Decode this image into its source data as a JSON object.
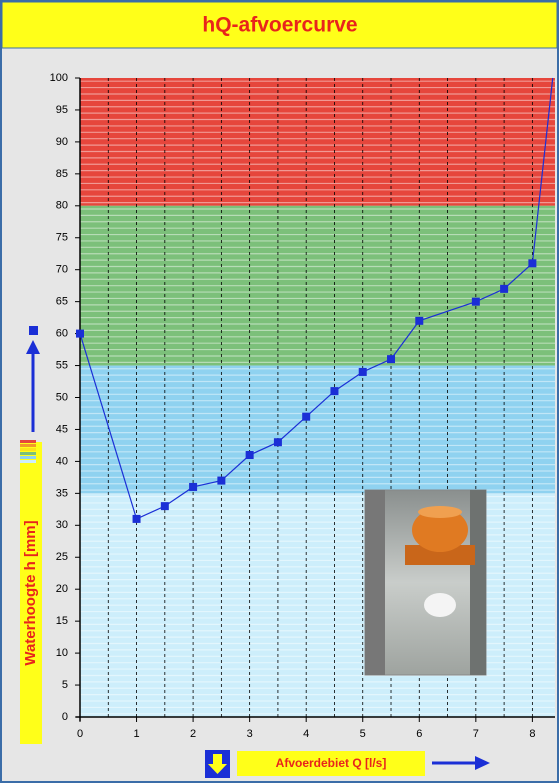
{
  "chart_data": {
    "type": "line",
    "title": "hQ-afvoercurve",
    "x_label": "Afvoerdebiet Q [l/s]",
    "y_label": "Waterhoogte h [mm]",
    "x": [
      0,
      1,
      1.5,
      2,
      2.5,
      3,
      3.5,
      4,
      4.5,
      5,
      5.5,
      6,
      7,
      7.5,
      8,
      8.36
    ],
    "series": [
      {
        "color": "#1b2fd6",
        "values": [
          60,
          31,
          33,
          36,
          37,
          41,
          43,
          47,
          51,
          54,
          56,
          62,
          65,
          67,
          71,
          100
        ]
      }
    ],
    "xlim": [
      0,
      8.4
    ],
    "ylim": [
      0,
      100
    ],
    "xticks": [
      0,
      1,
      2,
      3,
      4,
      5,
      6,
      7,
      8
    ],
    "x_dashed_lines": [
      0.5,
      1,
      1.5,
      2,
      2.5,
      3,
      3.5,
      4,
      4.5,
      5,
      5.5,
      6,
      6.5,
      7,
      7.5,
      8
    ],
    "yticks": [
      0,
      5,
      10,
      15,
      20,
      25,
      30,
      35,
      40,
      45,
      50,
      55,
      60,
      65,
      70,
      75,
      80,
      85,
      90,
      95,
      100
    ],
    "bands": [
      {
        "from": 80,
        "to": 100,
        "color": "#e6463c"
      },
      {
        "from": 55,
        "to": 80,
        "color": "#7cc07a"
      },
      {
        "from": 35,
        "to": 55,
        "color": "#8fd2f0"
      },
      {
        "from": 0,
        "to": 35,
        "color": "#cdeefb"
      }
    ]
  }
}
